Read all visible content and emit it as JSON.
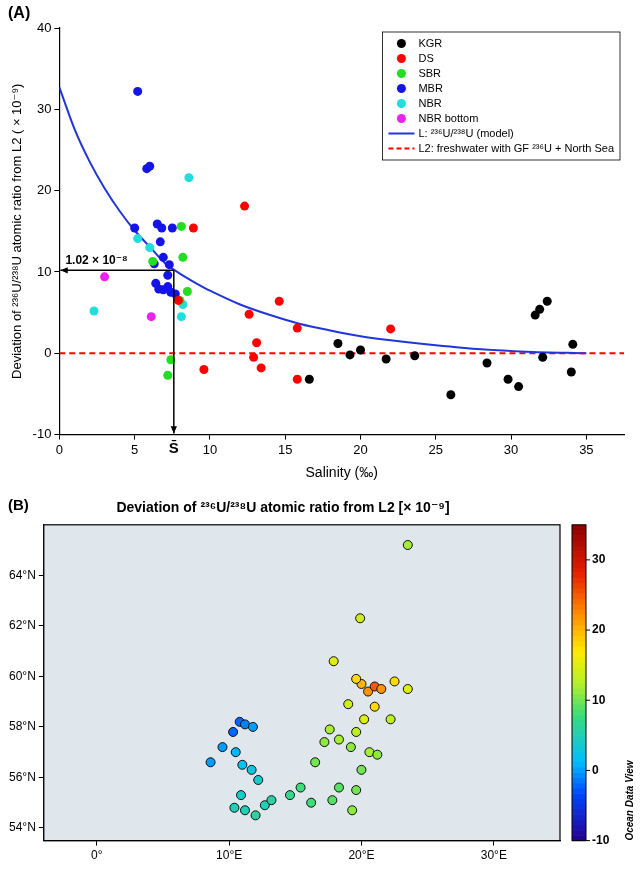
{
  "chart_data": [
    {
      "type": "scatter",
      "panel": "(A)",
      "x_label": "Salinity (‰)",
      "y_label": "Deviation of ²³⁶U/²³⁸U atomic ratio from L2 ( × 10⁻⁹)",
      "xlim": [
        0,
        37.5
      ],
      "xticks": [
        0,
        5,
        10,
        15,
        20,
        25,
        30,
        35
      ],
      "ylim": [
        -10,
        40
      ],
      "yticks": [
        -10,
        0,
        10,
        20,
        30,
        40
      ],
      "grid": false,
      "legend": "upper right",
      "series": [
        {
          "name": "KGR",
          "color": "#000000",
          "marker": "circle",
          "x": [
            16.6,
            18.5,
            19.3,
            20.0,
            21.7,
            23.6,
            26.0,
            28.4,
            29.8,
            30.5,
            31.6,
            31.9,
            32.1,
            32.4,
            34.0,
            34.1
          ],
          "values": [
            -3.2,
            1.2,
            -0.2,
            0.4,
            -0.7,
            -0.3,
            -5.1,
            -1.2,
            -3.2,
            -4.1,
            4.7,
            5.4,
            -0.5,
            6.4,
            -2.3,
            1.1
          ]
        },
        {
          "name": "DS",
          "color": "#ff0000",
          "marker": "circle",
          "x": [
            7.9,
            8.9,
            9.6,
            12.3,
            12.6,
            12.9,
            13.1,
            13.4,
            14.6,
            15.8,
            15.8,
            22.0
          ],
          "values": [
            6.5,
            15.4,
            -2.0,
            18.1,
            4.8,
            -0.5,
            1.3,
            -1.8,
            6.4,
            3.1,
            -3.2,
            3.0
          ]
        },
        {
          "name": "SBR",
          "color": "#22dd22",
          "marker": "circle",
          "x": [
            6.2,
            7.2,
            7.4,
            8.1,
            8.2,
            8.5,
            8.0
          ],
          "values": [
            11.3,
            -2.7,
            -0.8,
            15.6,
            11.8,
            7.6,
            6.5
          ]
        },
        {
          "name": "MBR",
          "color": "#1414e6",
          "marker": "circle",
          "x": [
            5.0,
            5.2,
            5.8,
            6.0,
            6.3,
            6.5,
            6.7,
            6.4,
            6.6,
            6.9,
            6.8,
            7.2,
            7.3,
            7.2,
            7.4,
            7.7,
            7.5,
            6.9
          ],
          "values": [
            15.4,
            32.2,
            22.7,
            23.0,
            11.0,
            15.9,
            13.7,
            8.6,
            7.9,
            7.8,
            15.4,
            9.6,
            10.9,
            8.2,
            7.5,
            7.3,
            15.4,
            11.8
          ]
        },
        {
          "name": "NBR",
          "color": "#22dddd",
          "marker": "circle",
          "x": [
            2.3,
            5.2,
            6.0,
            8.1,
            8.6,
            8.2
          ],
          "values": [
            5.2,
            14.1,
            13.0,
            4.5,
            21.6,
            6.0
          ]
        },
        {
          "name": "NBR bottom",
          "color": "#ee22ee",
          "marker": "circle",
          "x": [
            3.0,
            6.1
          ],
          "values": [
            9.4,
            4.5
          ]
        },
        {
          "name": "L: ²³⁶U/²³⁸U (model)",
          "type": "line",
          "color": "#2036d8",
          "line_style": "solid",
          "marker": "none",
          "x": [
            0,
            1,
            2,
            3,
            4,
            5,
            6,
            7,
            8,
            9,
            10,
            12,
            14,
            16,
            18,
            20,
            22,
            25,
            28,
            31,
            35
          ],
          "values": [
            32.7,
            27.6,
            23.6,
            20.3,
            17.5,
            15.1,
            13.1,
            11.1,
            9.8,
            8.7,
            7.7,
            6.0,
            4.7,
            3.6,
            2.8,
            2.1,
            1.6,
            1.0,
            0.5,
            0.2,
            0
          ]
        },
        {
          "name": "L2: freshwater with GF ²³⁶U + North Sea",
          "type": "line",
          "color": "#ff0000",
          "line_style": "dashed",
          "marker": "none",
          "x": [
            0,
            37.5
          ],
          "values": [
            0,
            0
          ]
        }
      ],
      "annotations": [
        {
          "text": "1.02 × 10⁻⁸",
          "x": 7.6,
          "y": 10.2
        },
        {
          "text": "S̄",
          "x": 7.6
        }
      ]
    },
    {
      "type": "map",
      "panel": "(B)",
      "title": "Deviation of ²³⁶U/²³⁸U atomic ratio from L2 [× 10⁻⁹]",
      "xlim": [
        -4,
        35
      ],
      "xticks": [
        {
          "value": 0,
          "label": "0°"
        },
        {
          "value": 10,
          "label": "10°E"
        },
        {
          "value": 20,
          "label": "20°E"
        },
        {
          "value": 30,
          "label": "30°E"
        }
      ],
      "ylim": [
        53.5,
        66
      ],
      "yticks": [
        {
          "value": 54,
          "label": "54°N"
        },
        {
          "value": 56,
          "label": "56°N"
        },
        {
          "value": 58,
          "label": "58°N"
        },
        {
          "value": 60,
          "label": "60°N"
        },
        {
          "value": 62,
          "label": "62°N"
        },
        {
          "value": 64,
          "label": "64°N"
        }
      ],
      "grid": false,
      "stations": {
        "lon": [
          8.6,
          9.5,
          10.3,
          10.8,
          11.2,
          11.8,
          10.5,
          11.0,
          11.7,
          12.2,
          10.9,
          10.4,
          11.2,
          12.0,
          12.7,
          13.2,
          14.6,
          15.4,
          16.2,
          17.8,
          19.3,
          18.3,
          19.6,
          16.5,
          17.2,
          17.6,
          18.3,
          19.2,
          19.6,
          20.2,
          20.6,
          21.2,
          20.0,
          21.0,
          19.0,
          20.5,
          21.0,
          20.0,
          19.6,
          21.5,
          22.5,
          23.5,
          19.9,
          23.5,
          17.9,
          22.2
        ],
        "lat": [
          56.6,
          57.2,
          57.8,
          58.2,
          58.1,
          58.0,
          57.0,
          56.5,
          56.3,
          55.9,
          55.3,
          54.8,
          54.7,
          54.5,
          54.9,
          55.1,
          55.3,
          55.6,
          55.0,
          55.1,
          54.7,
          55.6,
          55.5,
          56.6,
          57.4,
          57.9,
          57.5,
          57.2,
          57.8,
          58.3,
          57.0,
          56.9,
          56.3,
          58.8,
          58.9,
          59.4,
          59.6,
          59.7,
          59.9,
          59.5,
          59.8,
          59.5,
          62.3,
          65.2,
          60.6,
          58.3
        ],
        "values": [
          0,
          0,
          -2,
          -2,
          -1,
          0,
          1,
          2,
          3,
          4,
          4,
          5,
          5,
          6,
          5,
          6,
          7,
          8,
          8,
          9,
          11,
          9,
          10,
          10,
          11,
          12,
          12,
          11,
          13,
          15,
          12,
          11,
          10,
          18,
          14,
          22,
          25,
          20,
          18,
          22,
          18,
          15,
          14,
          12,
          15,
          13
        ]
      },
      "colorbar": {
        "range": [
          -10,
          35
        ],
        "ticks": [
          -10,
          0,
          10,
          20,
          30
        ]
      },
      "watermark": "Ocean Data View"
    }
  ]
}
